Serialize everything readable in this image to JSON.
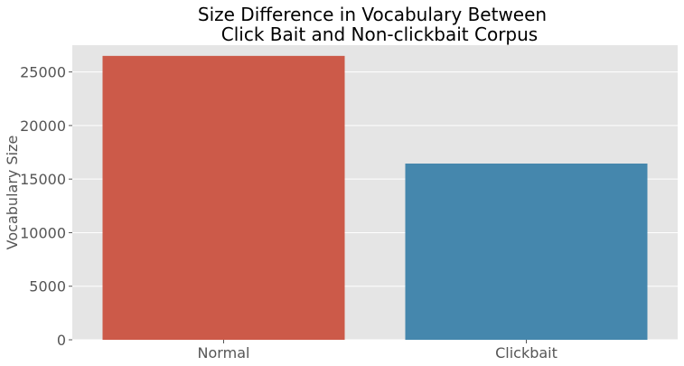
{
  "chart_data": {
    "type": "bar",
    "title_lines": [
      "Size Difference in Vocabulary Between",
      "Click Bait and Non-clickbait Corpus"
    ],
    "xlabel": "",
    "ylabel": "Vocabulary Size",
    "categories": [
      "Normal",
      "Clickbait"
    ],
    "values": [
      26500,
      16450
    ],
    "colors": [
      "#cc5a49",
      "#4587ad"
    ],
    "ylim": [
      0,
      27500
    ],
    "yticks": [
      0,
      5000,
      10000,
      15000,
      20000,
      25000
    ],
    "grid": true,
    "legend": "none"
  },
  "style": {
    "plot_background": "#e5e5e5",
    "grid_color": "#ffffff",
    "tick_color": "#555555"
  }
}
